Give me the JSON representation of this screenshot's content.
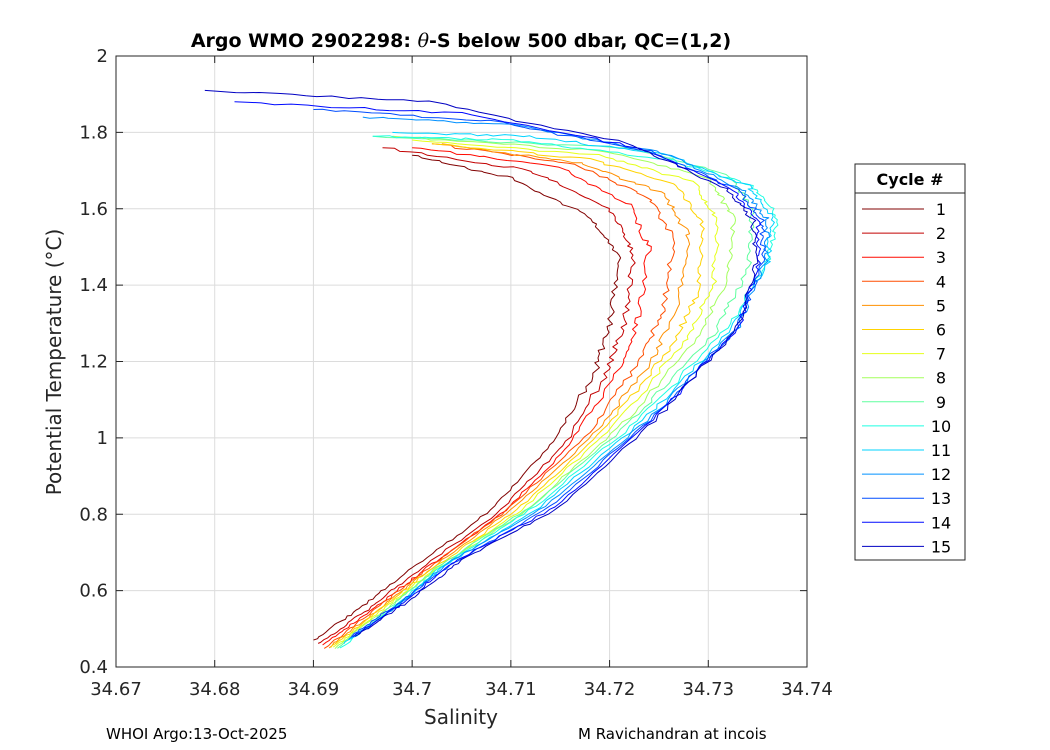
{
  "chart_data": {
    "type": "line",
    "title_prefix": "Argo WMO 2902298: ",
    "title_theta": "θ",
    "title_suffix": "-S below 500 dbar,  QC=(1,2)",
    "xlabel": "Salinity",
    "ylabel": "Potential Temperature (°C)",
    "xlim": [
      34.67,
      34.74
    ],
    "ylim": [
      0.4,
      2.0
    ],
    "x_ticks": [
      "34.67",
      "34.68",
      "34.69",
      "34.7",
      "34.71",
      "34.72",
      "34.73",
      "34.74"
    ],
    "y_ticks": [
      "0.4",
      "0.6",
      "0.8",
      "1",
      "1.2",
      "1.4",
      "1.6",
      "1.8",
      "2"
    ],
    "grid": true,
    "legend_title": "Cycle #",
    "legend_position": "right-outside",
    "series": [
      {
        "name": "1",
        "color": "#800000",
        "x": [
          34.69,
          34.695,
          34.7,
          34.708,
          34.714,
          34.7185,
          34.72,
          34.721,
          34.718,
          34.71,
          34.7
        ],
        "y": [
          0.47,
          0.56,
          0.66,
          0.81,
          0.98,
          1.17,
          1.3,
          1.47,
          1.58,
          1.68,
          1.74
        ]
      },
      {
        "name": "2",
        "color": "#c20000",
        "x": [
          34.6905,
          34.6955,
          34.7005,
          34.7085,
          34.715,
          34.7195,
          34.7215,
          34.7225,
          34.72,
          34.712,
          34.697
        ],
        "y": [
          0.46,
          0.55,
          0.65,
          0.8,
          0.97,
          1.16,
          1.3,
          1.48,
          1.6,
          1.7,
          1.76
        ]
      },
      {
        "name": "3",
        "color": "#ff0a00",
        "x": [
          34.691,
          34.696,
          34.701,
          34.709,
          34.716,
          34.721,
          34.723,
          34.724,
          34.722,
          34.715,
          34.7
        ],
        "y": [
          0.46,
          0.55,
          0.65,
          0.8,
          0.98,
          1.18,
          1.32,
          1.5,
          1.61,
          1.71,
          1.76
        ]
      },
      {
        "name": "4",
        "color": "#ff4d00",
        "x": [
          34.6912,
          34.6962,
          34.7012,
          34.7095,
          34.7175,
          34.723,
          34.7255,
          34.7265,
          34.724,
          34.716,
          34.702
        ],
        "y": [
          0.45,
          0.55,
          0.65,
          0.81,
          1.0,
          1.2,
          1.34,
          1.52,
          1.63,
          1.72,
          1.77
        ]
      },
      {
        "name": "5",
        "color": "#ff9000",
        "x": [
          34.6915,
          34.6965,
          34.7015,
          34.71,
          34.7185,
          34.7245,
          34.727,
          34.728,
          34.7255,
          34.717,
          34.703
        ],
        "y": [
          0.45,
          0.55,
          0.65,
          0.81,
          1.01,
          1.21,
          1.36,
          1.53,
          1.64,
          1.72,
          1.77
        ]
      },
      {
        "name": "6",
        "color": "#ffd300",
        "x": [
          34.6917,
          34.6967,
          34.7017,
          34.7105,
          34.7195,
          34.726,
          34.729,
          34.7295,
          34.727,
          34.718,
          34.702
        ],
        "y": [
          0.45,
          0.55,
          0.65,
          0.81,
          1.02,
          1.23,
          1.38,
          1.55,
          1.66,
          1.73,
          1.77
        ]
      },
      {
        "name": "7",
        "color": "#e6ff19",
        "x": [
          34.692,
          34.697,
          34.702,
          34.711,
          34.7205,
          34.7275,
          34.7305,
          34.731,
          34.7285,
          34.719,
          34.7
        ],
        "y": [
          0.45,
          0.55,
          0.65,
          0.81,
          1.03,
          1.25,
          1.4,
          1.57,
          1.67,
          1.74,
          1.78
        ]
      },
      {
        "name": "8",
        "color": "#a3ff5c",
        "x": [
          34.6922,
          34.6972,
          34.7022,
          34.7115,
          34.7215,
          34.729,
          34.732,
          34.7325,
          34.73,
          34.72,
          34.698
        ],
        "y": [
          0.45,
          0.55,
          0.65,
          0.81,
          1.04,
          1.26,
          1.42,
          1.58,
          1.68,
          1.75,
          1.79
        ]
      },
      {
        "name": "9",
        "color": "#60ff9f",
        "x": [
          34.6925,
          34.6975,
          34.7025,
          34.712,
          34.7225,
          34.7305,
          34.734,
          34.7345,
          34.732,
          34.722,
          34.696
        ],
        "y": [
          0.45,
          0.55,
          0.66,
          0.82,
          1.05,
          1.27,
          1.44,
          1.6,
          1.69,
          1.76,
          1.79
        ]
      },
      {
        "name": "10",
        "color": "#1dffe2",
        "x": [
          34.6928,
          34.6978,
          34.7028,
          34.7125,
          34.7235,
          34.732,
          34.736,
          34.737,
          34.7345,
          34.726,
          34.71,
          34.696
        ],
        "y": [
          0.45,
          0.55,
          0.66,
          0.82,
          1.06,
          1.29,
          1.46,
          1.58,
          1.66,
          1.73,
          1.78,
          1.79
        ]
      },
      {
        "name": "11",
        "color": "#00d3ff",
        "x": [
          34.693,
          34.698,
          34.703,
          34.713,
          34.724,
          34.7325,
          34.736,
          34.7365,
          34.734,
          34.726,
          34.712,
          34.698
        ],
        "y": [
          0.46,
          0.55,
          0.66,
          0.82,
          1.06,
          1.29,
          1.46,
          1.58,
          1.66,
          1.74,
          1.79,
          1.8
        ]
      },
      {
        "name": "12",
        "color": "#0090ff",
        "x": [
          34.6935,
          34.6985,
          34.7035,
          34.7135,
          34.7245,
          34.733,
          34.7358,
          34.736,
          34.7335,
          34.725,
          34.71,
          34.695
        ],
        "y": [
          0.47,
          0.56,
          0.67,
          0.82,
          1.06,
          1.29,
          1.46,
          1.57,
          1.65,
          1.75,
          1.82,
          1.84
        ]
      },
      {
        "name": "13",
        "color": "#004dff",
        "x": [
          34.6938,
          34.6988,
          34.704,
          34.714,
          34.7248,
          34.733,
          34.7355,
          34.7355,
          34.733,
          34.724,
          34.708,
          34.69
        ],
        "y": [
          0.48,
          0.57,
          0.67,
          0.82,
          1.06,
          1.29,
          1.46,
          1.57,
          1.65,
          1.75,
          1.83,
          1.86
        ]
      },
      {
        "name": "14",
        "color": "#000aff",
        "x": [
          34.694,
          34.6992,
          34.7045,
          34.7145,
          34.725,
          34.733,
          34.7352,
          34.735,
          34.7325,
          34.723,
          34.705,
          34.682
        ],
        "y": [
          0.48,
          0.57,
          0.68,
          0.82,
          1.06,
          1.29,
          1.46,
          1.57,
          1.65,
          1.76,
          1.85,
          1.88
        ]
      },
      {
        "name": "15",
        "color": "#0000c2",
        "x": [
          34.6943,
          34.6995,
          34.705,
          34.715,
          34.7252,
          34.733,
          34.735,
          34.7345,
          34.732,
          34.722,
          34.702,
          34.679
        ],
        "y": [
          0.48,
          0.57,
          0.68,
          0.82,
          1.06,
          1.29,
          1.46,
          1.57,
          1.65,
          1.77,
          1.88,
          1.91
        ]
      }
    ]
  },
  "footer": {
    "left": "WHOI Argo:13-Oct-2025",
    "right": "M Ravichandran at incois"
  }
}
